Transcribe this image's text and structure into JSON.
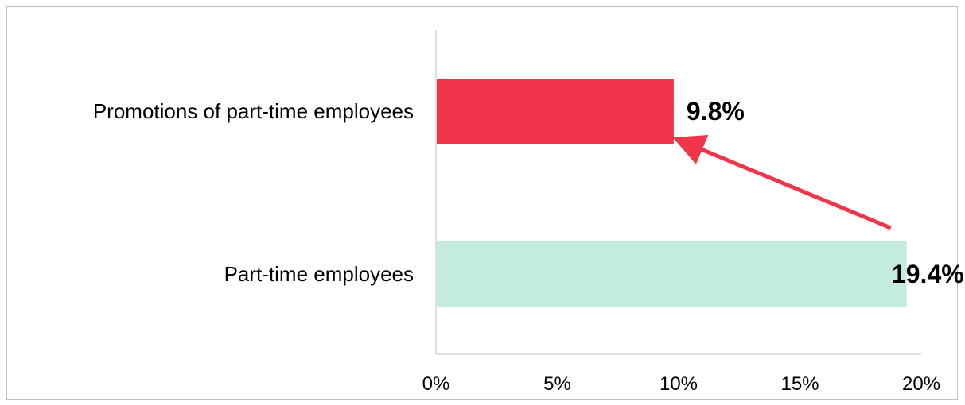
{
  "chart_data": {
    "type": "bar",
    "orientation": "horizontal",
    "categories": [
      "Promotions of part-time employees",
      "Part-time employees"
    ],
    "values": [
      9.8,
      19.4
    ],
    "value_labels": [
      "9.8%",
      "19.4%"
    ],
    "bar_colors": [
      "#f0344a",
      "#c4ecdc"
    ],
    "xlim": [
      0,
      20
    ],
    "x_ticks": [
      0,
      5,
      10,
      15,
      20
    ],
    "x_tick_labels": [
      "0%",
      "5%",
      "10%",
      "15%",
      "20%"
    ],
    "grid": false,
    "legend": "none",
    "annotation": {
      "type": "arrow",
      "from_category": "Part-time employees",
      "to_category": "Promotions of part-time employees",
      "color": "#f0344a"
    }
  }
}
